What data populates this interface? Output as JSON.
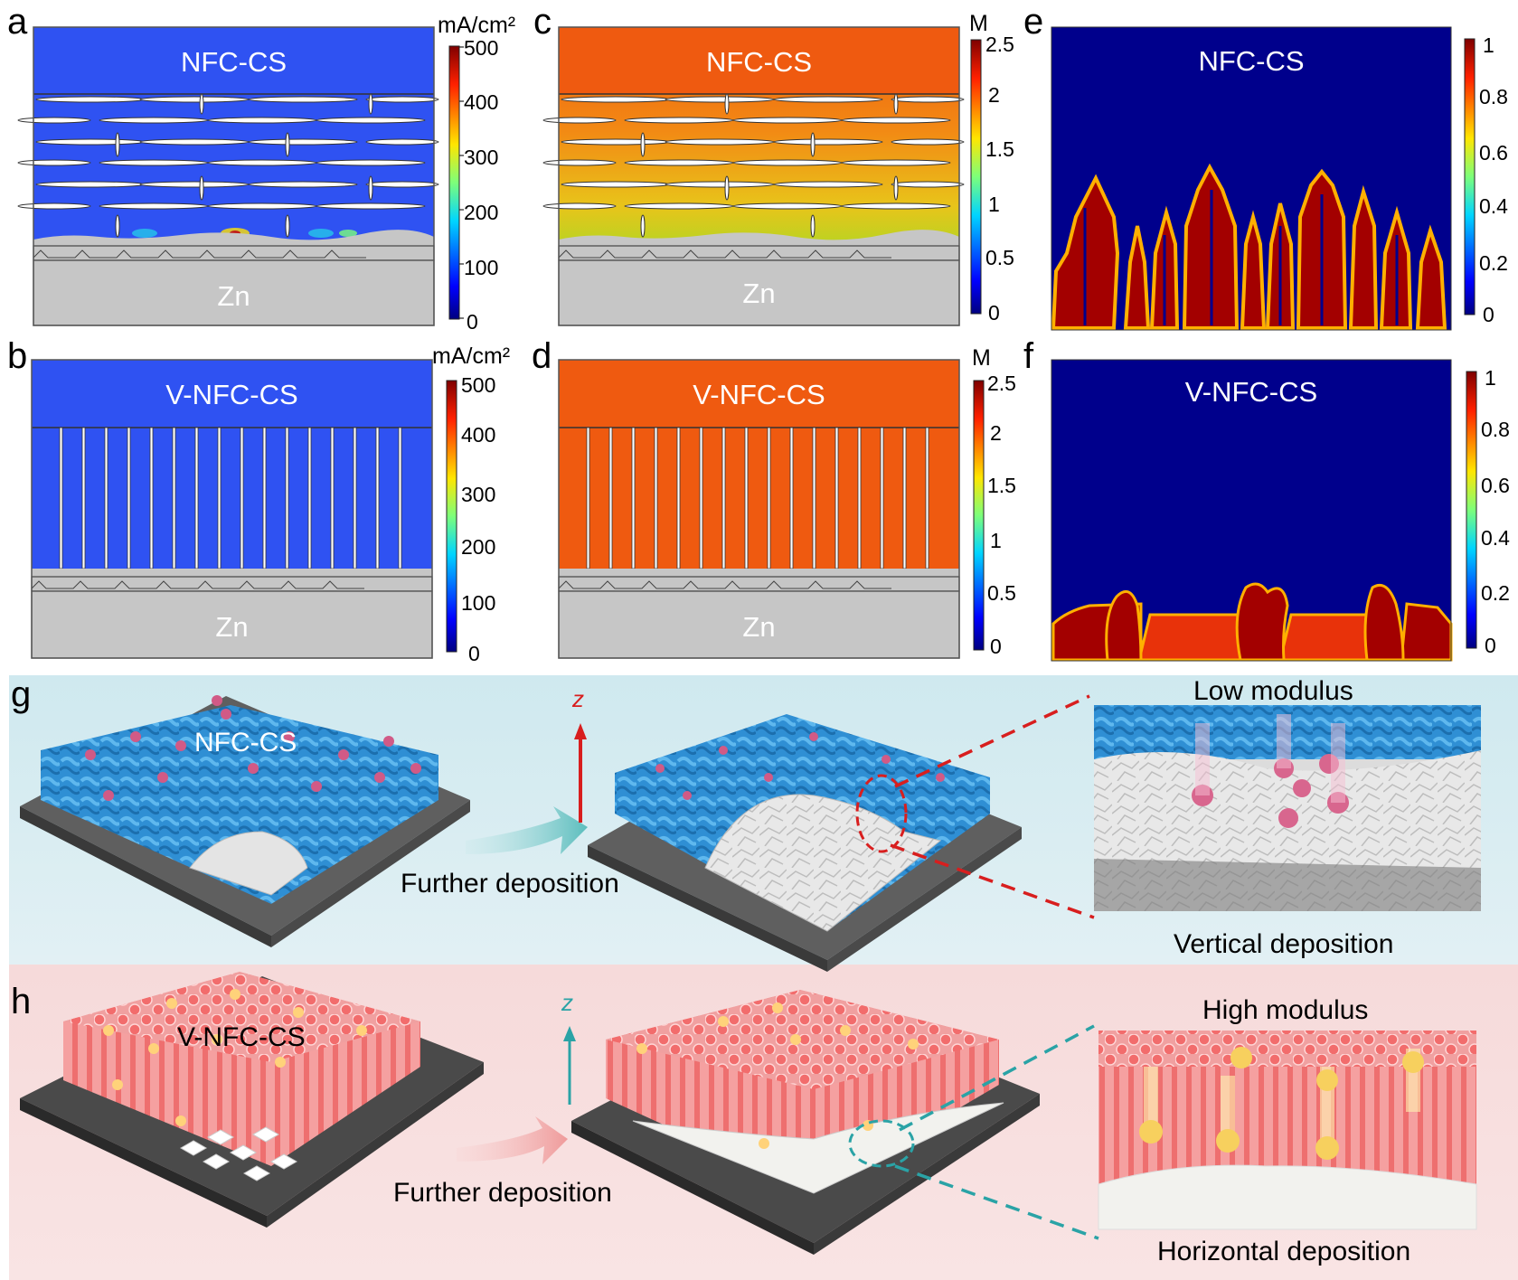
{
  "panels": {
    "a": {
      "label": "a",
      "title": "NFC-CS",
      "substrate": "Zn",
      "unit": "mA/cm²",
      "ticks": [
        "500",
        "400",
        "300",
        "200",
        "100",
        "0"
      ],
      "fill": "#2f52f2"
    },
    "b": {
      "label": "b",
      "title": "V-NFC-CS",
      "substrate": "Zn",
      "unit": "mA/cm²",
      "ticks": [
        "500",
        "400",
        "300",
        "200",
        "100",
        "0"
      ],
      "fill": "#2f52f2"
    },
    "c": {
      "label": "c",
      "title": "NFC-CS",
      "substrate": "Zn",
      "unit": "M",
      "ticks": [
        "2.5",
        "2",
        "1.5",
        "1",
        "0.5",
        "0"
      ]
    },
    "d": {
      "label": "d",
      "title": "V-NFC-CS",
      "substrate": "Zn",
      "unit": "M",
      "ticks": [
        "2.5",
        "2",
        "1.5",
        "1",
        "0.5",
        "0"
      ],
      "fill": "#ef5a10"
    },
    "e": {
      "label": "e",
      "title": "NFC-CS",
      "ticks": [
        "1",
        "0.8",
        "0.6",
        "0.4",
        "0.2",
        "0"
      ]
    },
    "f": {
      "label": "f",
      "title": "V-NFC-CS",
      "ticks": [
        "1",
        "0.8",
        "0.6",
        "0.4",
        "0.2",
        "0"
      ]
    },
    "g": {
      "label": "g",
      "model_label": "NFC-CS",
      "arrow_text": "Further deposition",
      "axis": "z",
      "zoom_top": "Low modulus",
      "zoom_bottom": "Vertical deposition"
    },
    "h": {
      "label": "h",
      "model_label": "V-NFC-CS",
      "arrow_text": "Further deposition",
      "axis": "z",
      "zoom_top": "High modulus",
      "zoom_bottom": "Horizontal deposition"
    }
  },
  "colors": {
    "current_blue": "#2f52f2",
    "conc_orange": "#ef5a10",
    "phase_navy": "#00008c",
    "phase_red": "#a30000",
    "substrate_gray": "#c6c6c6",
    "g_background": "#cfe9ef",
    "h_background": "#f6dada",
    "g_accent": "#d81e1e",
    "h_accent": "#2aa3a6"
  }
}
